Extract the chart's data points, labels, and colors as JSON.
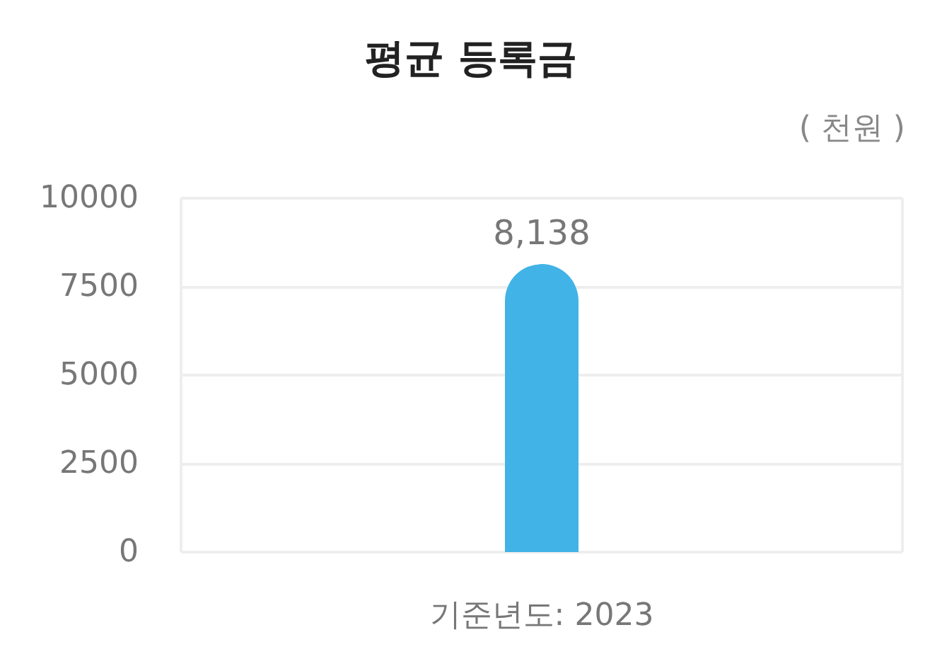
{
  "chart_data": {
    "type": "bar",
    "title": "평균 등록금",
    "ylabel": "( 천원 )",
    "categories": [
      "기준년도: 2023"
    ],
    "values": [
      8138
    ],
    "value_labels": [
      "8,138"
    ],
    "color": "#41b3e6",
    "ylim": [
      0,
      10000
    ],
    "yticks": [
      0,
      2500,
      5000,
      7500,
      10000
    ],
    "grid": true
  }
}
